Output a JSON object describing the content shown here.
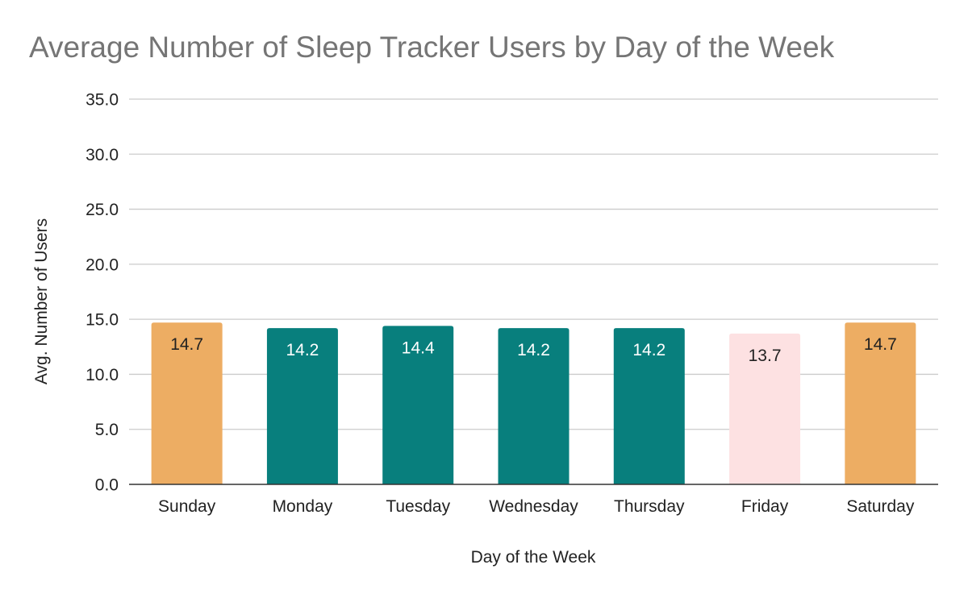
{
  "chart_data": {
    "type": "bar",
    "title": "Average Number of Sleep Tracker Users by Day of the Week",
    "xlabel": "Day of the Week",
    "ylabel": "Avg. Number of Users",
    "categories": [
      "Sunday",
      "Monday",
      "Tuesday",
      "Wednesday",
      "Thursday",
      "Friday",
      "Saturday"
    ],
    "values": [
      14.7,
      14.2,
      14.4,
      14.2,
      14.2,
      13.7,
      14.7
    ],
    "value_labels": [
      "14.7",
      "14.2",
      "14.4",
      "14.2",
      "14.2",
      "13.7",
      "14.7"
    ],
    "bar_colors": [
      "#EDAD63",
      "#087F7D",
      "#087F7D",
      "#087F7D",
      "#087F7D",
      "#FDE1E2",
      "#EDAD63"
    ],
    "label_colors": [
      "#222222",
      "#FFFFFF",
      "#FFFFFF",
      "#FFFFFF",
      "#FFFFFF",
      "#222222",
      "#222222"
    ],
    "yticks": [
      "0.0",
      "5.0",
      "10.0",
      "15.0",
      "20.0",
      "25.0",
      "30.0",
      "35.0"
    ],
    "ylim": [
      0,
      35
    ],
    "grid": true,
    "legend": "none"
  }
}
